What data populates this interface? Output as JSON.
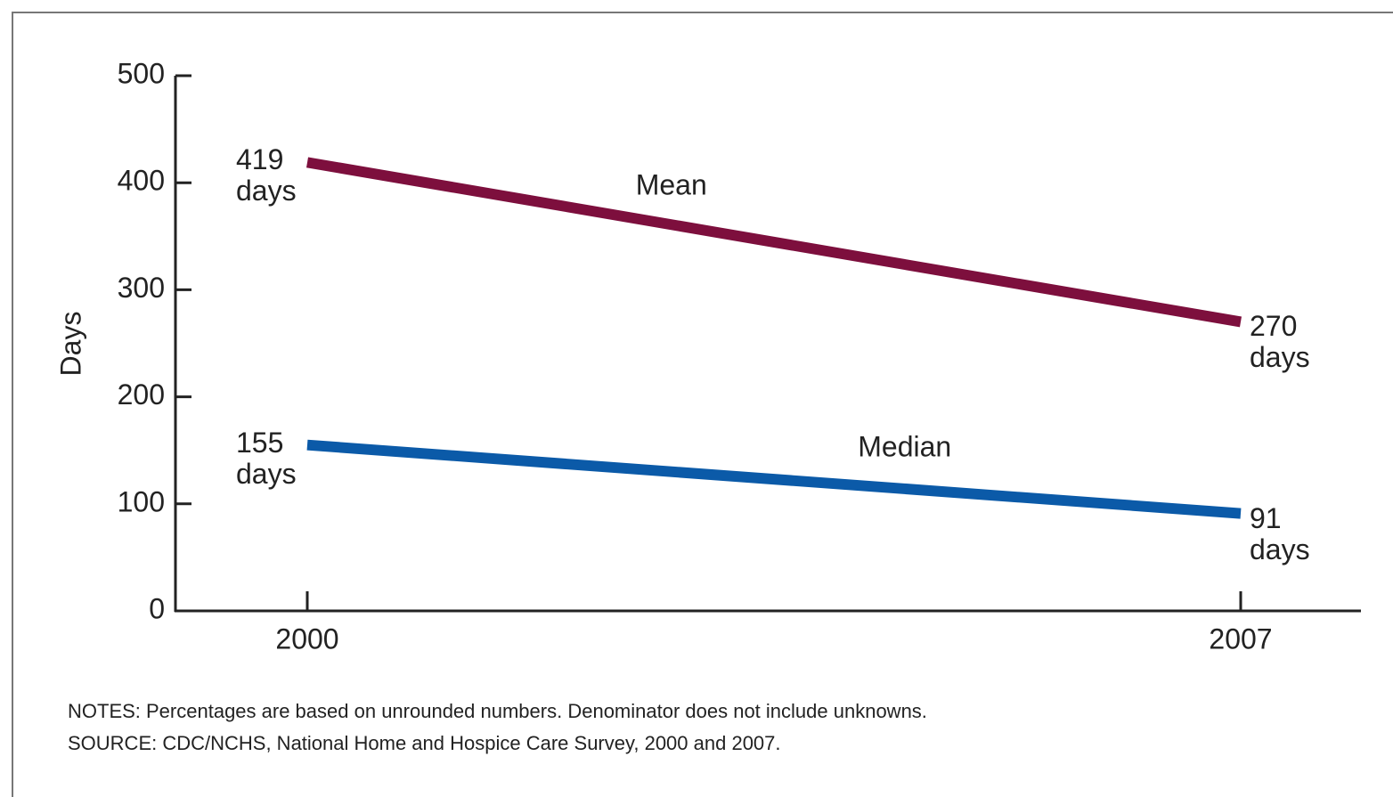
{
  "chart_data": {
    "type": "line",
    "y_label": "Days",
    "categories": [
      "2000",
      "2007"
    ],
    "series": [
      {
        "name": "Mean",
        "color": "#7d0f3d",
        "values": [
          419,
          270
        ],
        "value_labels": [
          "419 days",
          "270 days"
        ]
      },
      {
        "name": "Median",
        "color": "#0b5aa8",
        "values": [
          155,
          91
        ],
        "value_labels": [
          "155 days",
          "91 days"
        ]
      }
    ],
    "ylim": [
      0,
      500
    ],
    "yticks": [
      0,
      100,
      200,
      300,
      400,
      500
    ],
    "grid": false,
    "notes": [
      "NOTES: Percentages are based on unrounded numbers. Denominator does not include unknowns.",
      "SOURCE: CDC/NCHS, National Home and Hospice Care Survey, 2000 and 2007."
    ]
  }
}
